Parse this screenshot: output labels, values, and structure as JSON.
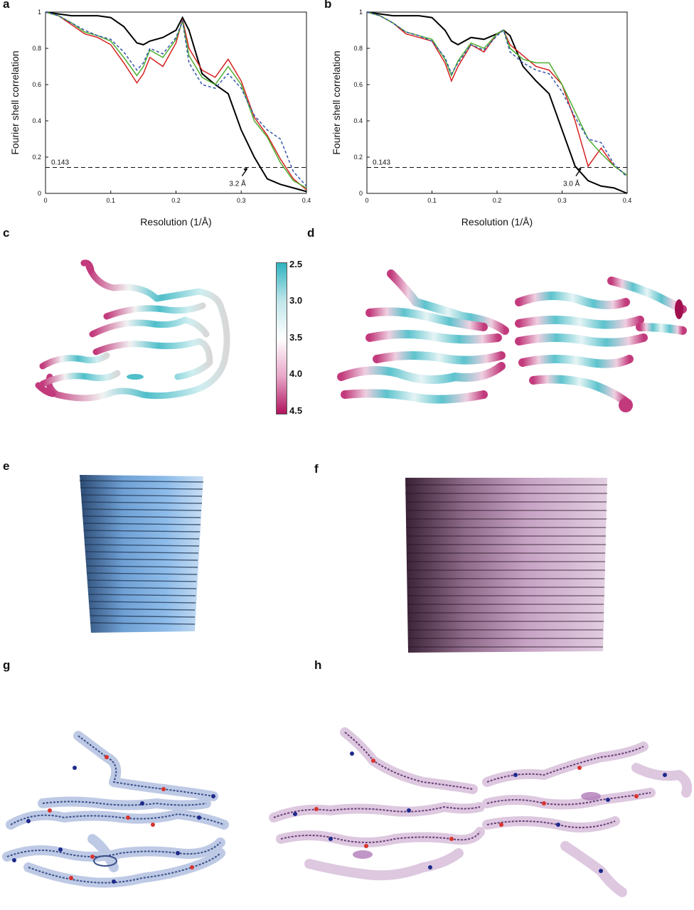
{
  "panels": {
    "a": {
      "label": "a"
    },
    "b": {
      "label": "b"
    },
    "c": {
      "label": "c"
    },
    "d": {
      "label": "d"
    },
    "e": {
      "label": "e"
    },
    "f": {
      "label": "f"
    },
    "g": {
      "label": "g"
    },
    "h": {
      "label": "h"
    }
  },
  "colorbar": {
    "ticks": [
      "2.5",
      "3.0",
      "3.5",
      "4.0",
      "4.5"
    ],
    "colors": [
      "#2fb3c0",
      "#bfe6ea",
      "#ffffff",
      "#e9a8c9",
      "#b0135e"
    ]
  },
  "map_colors": {
    "e": "#7fb0e4",
    "f": "#c9a6c9",
    "g": "#8aa0d0",
    "h": "#c8a4cc"
  },
  "chart_data": [
    {
      "type": "line",
      "title": "",
      "xlabel": "Resolution (1/Å)",
      "ylabel": "Fourier shell correlation",
      "xlim": [
        0,
        0.4
      ],
      "ylim": [
        0,
        1
      ],
      "xticks": [
        "0",
        "0.1",
        "0.2",
        "0.3",
        "0.4"
      ],
      "yticks": [
        "0",
        "0.2",
        "0.4",
        "0.6",
        "0.8",
        "1"
      ],
      "threshold": {
        "value": 0.143,
        "label": "0.143"
      },
      "annotation": {
        "text": "3.2 Å",
        "x": 0.31,
        "y": 0.143
      },
      "x": [
        0,
        0.02,
        0.04,
        0.06,
        0.08,
        0.1,
        0.12,
        0.14,
        0.15,
        0.16,
        0.18,
        0.2,
        0.21,
        0.22,
        0.24,
        0.26,
        0.28,
        0.3,
        0.32,
        0.34,
        0.36,
        0.38,
        0.4
      ],
      "series": [
        {
          "color": "#000000",
          "dash": "",
          "values": [
            1.0,
            0.99,
            0.98,
            0.98,
            0.98,
            0.97,
            0.92,
            0.83,
            0.82,
            0.84,
            0.86,
            0.9,
            0.97,
            0.9,
            0.66,
            0.6,
            0.55,
            0.35,
            0.2,
            0.08,
            0.05,
            0.03,
            0.01
          ]
        },
        {
          "color": "#d62020",
          "dash": "",
          "values": [
            1.0,
            0.98,
            0.93,
            0.88,
            0.86,
            0.82,
            0.72,
            0.61,
            0.66,
            0.75,
            0.7,
            0.83,
            0.96,
            0.8,
            0.68,
            0.64,
            0.74,
            0.62,
            0.42,
            0.32,
            0.19,
            0.08,
            0.02
          ]
        },
        {
          "color": "#4caf32",
          "dash": "",
          "values": [
            1.0,
            0.98,
            0.94,
            0.89,
            0.87,
            0.84,
            0.75,
            0.65,
            0.7,
            0.79,
            0.75,
            0.85,
            0.95,
            0.76,
            0.64,
            0.6,
            0.7,
            0.6,
            0.4,
            0.31,
            0.17,
            0.07,
            0.03
          ]
        },
        {
          "color": "#3355aa",
          "dash": "4,3",
          "values": [
            1.0,
            0.98,
            0.94,
            0.9,
            0.87,
            0.85,
            0.78,
            0.68,
            0.72,
            0.8,
            0.77,
            0.86,
            0.95,
            0.72,
            0.6,
            0.58,
            0.66,
            0.58,
            0.43,
            0.35,
            0.3,
            0.12,
            0.04
          ]
        }
      ]
    },
    {
      "type": "line",
      "title": "",
      "xlabel": "Resolution (1/Å)",
      "ylabel": "Fourier shell correlation",
      "xlim": [
        0,
        0.4
      ],
      "ylim": [
        0,
        1
      ],
      "xticks": [
        "0",
        "0.1",
        "0.2",
        "0.3",
        "0.4"
      ],
      "yticks": [
        "0",
        "0.2",
        "0.4",
        "0.6",
        "0.8",
        "1"
      ],
      "threshold": {
        "value": 0.143,
        "label": "0.143"
      },
      "annotation": {
        "text": "3.0 Å",
        "x": 0.33,
        "y": 0.143
      },
      "x": [
        0,
        0.02,
        0.04,
        0.06,
        0.08,
        0.1,
        0.12,
        0.13,
        0.14,
        0.16,
        0.18,
        0.2,
        0.21,
        0.22,
        0.24,
        0.26,
        0.28,
        0.3,
        0.32,
        0.34,
        0.36,
        0.38,
        0.4
      ],
      "series": [
        {
          "color": "#000000",
          "dash": "",
          "values": [
            1.0,
            0.99,
            0.98,
            0.98,
            0.98,
            0.97,
            0.9,
            0.84,
            0.82,
            0.86,
            0.85,
            0.88,
            0.9,
            0.87,
            0.7,
            0.62,
            0.55,
            0.35,
            0.15,
            0.07,
            0.04,
            0.03,
            0.0
          ]
        },
        {
          "color": "#d62020",
          "dash": "",
          "values": [
            1.0,
            0.98,
            0.94,
            0.88,
            0.86,
            0.84,
            0.72,
            0.62,
            0.7,
            0.82,
            0.78,
            0.88,
            0.9,
            0.82,
            0.76,
            0.7,
            0.68,
            0.6,
            0.4,
            0.15,
            0.25,
            0.15,
            0.1
          ]
        },
        {
          "color": "#4caf32",
          "dash": "",
          "values": [
            1.0,
            0.98,
            0.94,
            0.89,
            0.87,
            0.85,
            0.74,
            0.65,
            0.73,
            0.83,
            0.8,
            0.88,
            0.9,
            0.8,
            0.74,
            0.72,
            0.72,
            0.6,
            0.45,
            0.3,
            0.22,
            0.15,
            0.1
          ]
        },
        {
          "color": "#3355aa",
          "dash": "4,3",
          "values": [
            1.0,
            0.98,
            0.94,
            0.89,
            0.87,
            0.84,
            0.75,
            0.66,
            0.72,
            0.82,
            0.79,
            0.87,
            0.9,
            0.78,
            0.72,
            0.68,
            0.66,
            0.56,
            0.42,
            0.3,
            0.28,
            0.16,
            0.09
          ]
        }
      ]
    }
  ]
}
